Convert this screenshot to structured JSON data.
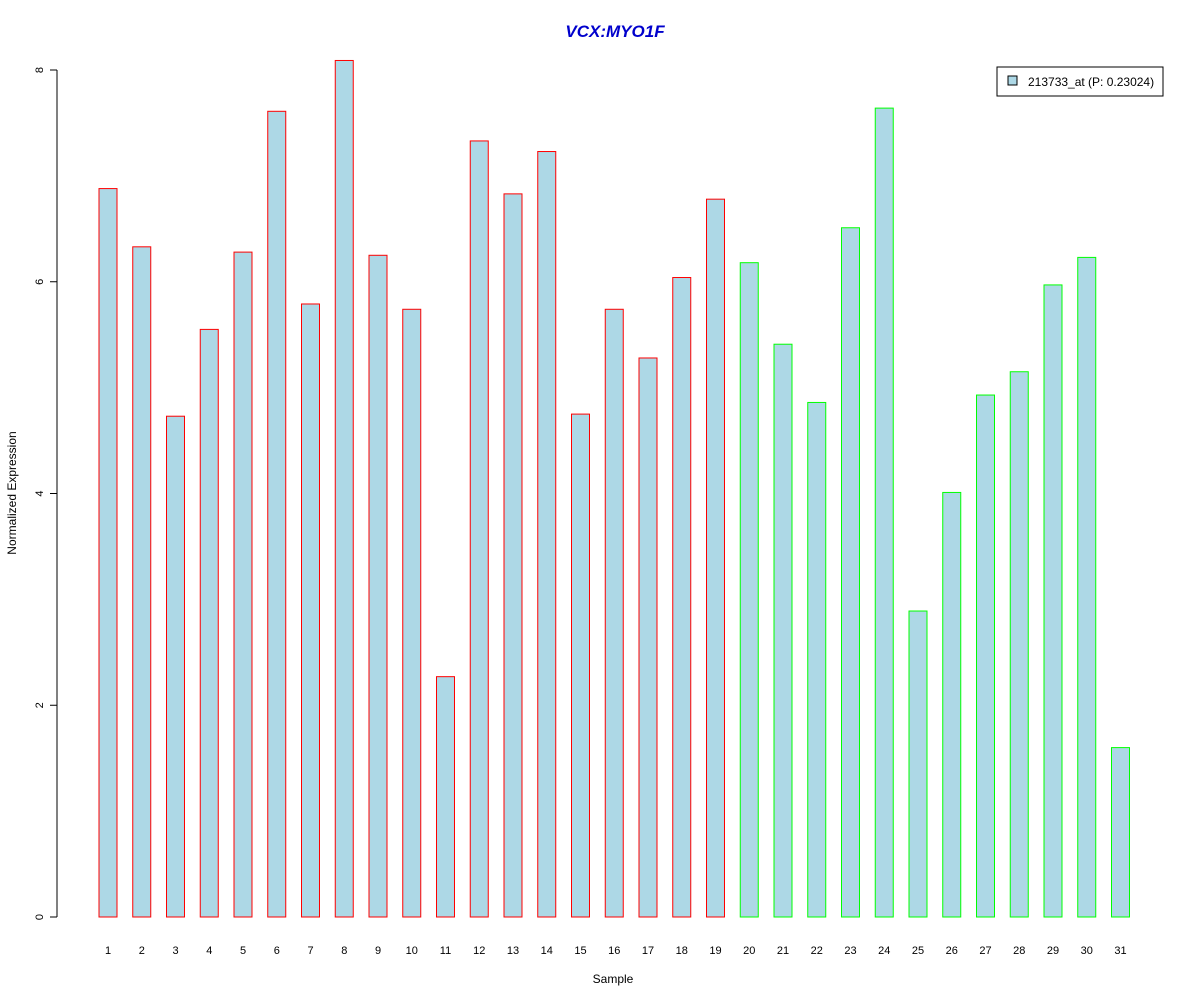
{
  "colors": {
    "title": "#0000CC",
    "bar_fill": "#ADD8E6",
    "group1_border": "#FF0000",
    "group2_border": "#00FF00",
    "axis": "#000000"
  },
  "chart_data": {
    "type": "bar",
    "title": "VCX:MYO1F",
    "xlabel": "Sample",
    "ylabel": "Normalized Expression",
    "ylim": [
      0,
      8
    ],
    "yticks": [
      0,
      2,
      4,
      6,
      8
    ],
    "grid": false,
    "legend_position": "top-right",
    "categories": [
      "1",
      "2",
      "3",
      "4",
      "5",
      "6",
      "7",
      "8",
      "9",
      "10",
      "11",
      "12",
      "13",
      "14",
      "15",
      "16",
      "17",
      "18",
      "19",
      "20",
      "21",
      "22",
      "23",
      "24",
      "25",
      "26",
      "27",
      "28",
      "29",
      "30",
      "31"
    ],
    "series": [
      {
        "name": "213733_at (P: 0.23024)",
        "values": [
          6.88,
          6.33,
          4.73,
          5.55,
          6.28,
          7.61,
          5.79,
          8.09,
          6.25,
          5.74,
          2.27,
          7.33,
          6.83,
          7.23,
          4.75,
          5.74,
          5.28,
          6.04,
          6.78,
          6.18,
          5.41,
          4.86,
          6.51,
          7.64,
          2.89,
          4.01,
          4.93,
          5.15,
          5.97,
          6.23,
          1.6
        ],
        "border_groups": [
          1,
          1,
          1,
          1,
          1,
          1,
          1,
          1,
          1,
          1,
          1,
          1,
          1,
          1,
          1,
          1,
          1,
          1,
          1,
          2,
          2,
          2,
          2,
          2,
          2,
          2,
          2,
          2,
          2,
          2,
          2
        ]
      }
    ]
  }
}
